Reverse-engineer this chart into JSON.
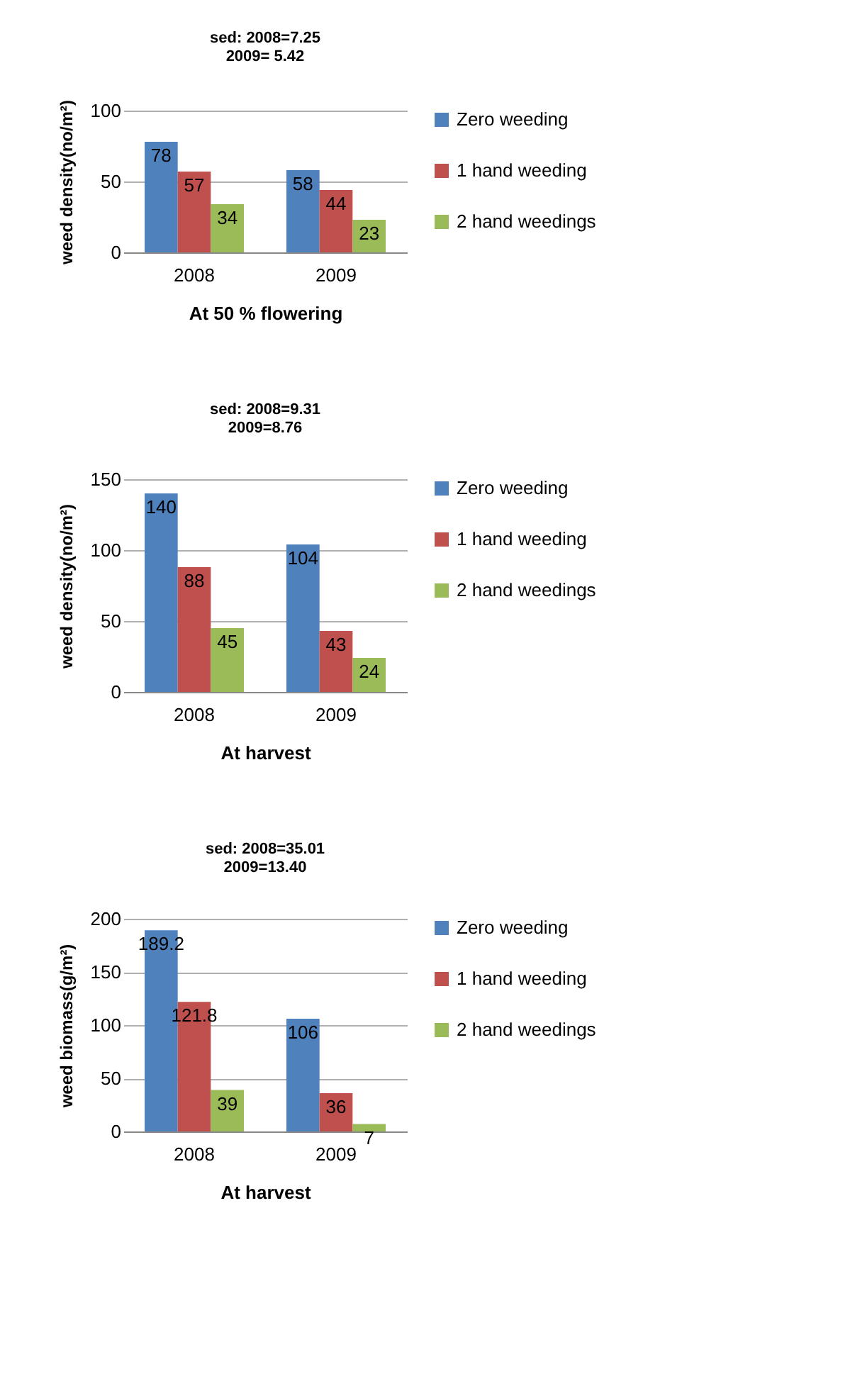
{
  "chart_data": [
    {
      "type": "bar",
      "annotations": [
        "sed:      2008=7.25",
        "2009= 5.42"
      ],
      "xlabel": "At 50 % flowering",
      "ylabel": "weed density(no/m²)",
      "categories": [
        "2008",
        "2009"
      ],
      "series": [
        {
          "name": "Zero weeding",
          "color": "#4f81bd",
          "values": [
            78,
            58
          ]
        },
        {
          "name": "1 hand weeding",
          "color": "#c0504d",
          "values": [
            57,
            44
          ]
        },
        {
          "name": "2 hand weedings",
          "color": "#9bbb59",
          "values": [
            34,
            23
          ]
        }
      ],
      "ylim": [
        0,
        100
      ],
      "yticks": [
        0,
        50,
        100
      ],
      "grid": "y",
      "legend": "right",
      "data_labels": true
    },
    {
      "type": "bar",
      "annotations": [
        "sed: 2008=9.31",
        "2009=8.76"
      ],
      "xlabel": "At harvest",
      "ylabel": "weed density(no/m²)",
      "categories": [
        "2008",
        "2009"
      ],
      "series": [
        {
          "name": "Zero weeding",
          "color": "#4f81bd",
          "values": [
            140,
            104
          ]
        },
        {
          "name": "1 hand weeding",
          "color": "#c0504d",
          "values": [
            88,
            43
          ]
        },
        {
          "name": "2 hand weedings",
          "color": "#9bbb59",
          "values": [
            45,
            24
          ]
        }
      ],
      "ylim": [
        0,
        150
      ],
      "yticks": [
        0,
        50,
        100,
        150
      ],
      "grid": "y",
      "legend": "right",
      "data_labels": true
    },
    {
      "type": "bar",
      "annotations": [
        "sed: 2008=35.01",
        "2009=13.40"
      ],
      "xlabel": "At harvest",
      "ylabel": "weed biomass(g/m²)",
      "categories": [
        "2008",
        "2009"
      ],
      "series": [
        {
          "name": "Zero weeding",
          "color": "#4f81bd",
          "values": [
            189.2,
            106
          ]
        },
        {
          "name": "1 hand weeding",
          "color": "#c0504d",
          "values": [
            121.8,
            36
          ]
        },
        {
          "name": "2 hand weedings",
          "color": "#9bbb59",
          "values": [
            39,
            7
          ]
        }
      ],
      "ylim": [
        0,
        200
      ],
      "yticks": [
        0,
        50,
        100,
        150,
        200
      ],
      "grid": "y",
      "legend": "right",
      "data_labels": true
    }
  ]
}
